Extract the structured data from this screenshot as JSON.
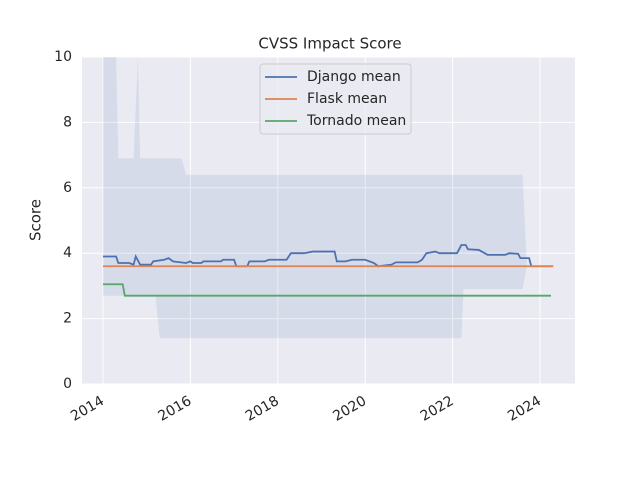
{
  "chart_data": {
    "type": "line",
    "title": "CVSS Impact Score",
    "ylabel": "Score",
    "xlim": [
      2013.52,
      2024.8
    ],
    "ylim": [
      0,
      10
    ],
    "xticks": [
      2014,
      2016,
      2018,
      2020,
      2022,
      2024
    ],
    "yticks": [
      0,
      2,
      4,
      6,
      8,
      10
    ],
    "grid": true,
    "legend": "upper center",
    "band": {
      "color": "#4c72b0",
      "x": [
        2014.0,
        2014.3,
        2014.35,
        2014.7,
        2014.8,
        2014.85,
        2015.2,
        2015.3,
        2015.8,
        2015.9,
        2022.2,
        2022.25,
        2023.5,
        2023.6,
        2023.7
      ],
      "upper": [
        10,
        10,
        6.9,
        6.9,
        10,
        6.9,
        6.9,
        6.9,
        6.9,
        6.4,
        6.4,
        6.4,
        6.4,
        6.4,
        3.6
      ],
      "lower": [
        2.7,
        2.7,
        2.7,
        2.7,
        2.7,
        2.7,
        2.7,
        1.4,
        1.4,
        1.4,
        1.4,
        2.9,
        2.9,
        2.9,
        3.6
      ]
    },
    "series": [
      {
        "name": "Django mean",
        "color": "#4c72b0",
        "x": [
          2014.0,
          2014.3,
          2014.35,
          2014.6,
          2014.7,
          2014.75,
          2014.85,
          2015.1,
          2015.15,
          2015.4,
          2015.5,
          2015.6,
          2015.9,
          2016.0,
          2016.05,
          2016.25,
          2016.3,
          2016.7,
          2016.75,
          2017.0,
          2017.05,
          2017.3,
          2017.35,
          2017.7,
          2017.8,
          2018.2,
          2018.3,
          2018.6,
          2018.8,
          2019.3,
          2019.35,
          2019.55,
          2019.7,
          2020.0,
          2020.2,
          2020.3,
          2020.6,
          2020.7,
          2021.2,
          2021.3,
          2021.4,
          2021.6,
          2021.7,
          2022.1,
          2022.2,
          2022.3,
          2022.35,
          2022.6,
          2022.8,
          2023.2,
          2023.3,
          2023.5,
          2023.55,
          2023.75,
          2023.8,
          2024.3
        ],
        "values": [
          3.9,
          3.9,
          3.7,
          3.7,
          3.65,
          3.9,
          3.65,
          3.65,
          3.75,
          3.8,
          3.85,
          3.75,
          3.7,
          3.75,
          3.7,
          3.7,
          3.75,
          3.75,
          3.8,
          3.8,
          3.6,
          3.6,
          3.75,
          3.75,
          3.8,
          3.8,
          4.0,
          4.0,
          4.05,
          4.05,
          3.75,
          3.75,
          3.8,
          3.8,
          3.7,
          3.6,
          3.65,
          3.72,
          3.72,
          3.8,
          4.0,
          4.05,
          4.0,
          4.0,
          4.25,
          4.25,
          4.12,
          4.1,
          3.95,
          3.95,
          4.0,
          3.98,
          3.85,
          3.85,
          3.6,
          3.6
        ]
      },
      {
        "name": "Flask mean",
        "color": "#dd8452",
        "x": [
          2014.0,
          2024.3
        ],
        "values": [
          3.6,
          3.6
        ]
      },
      {
        "name": "Tornado mean",
        "color": "#55a868",
        "x": [
          2014.0,
          2014.45,
          2014.5,
          2024.25
        ],
        "values": [
          3.05,
          3.05,
          2.7,
          2.7
        ]
      }
    ]
  }
}
